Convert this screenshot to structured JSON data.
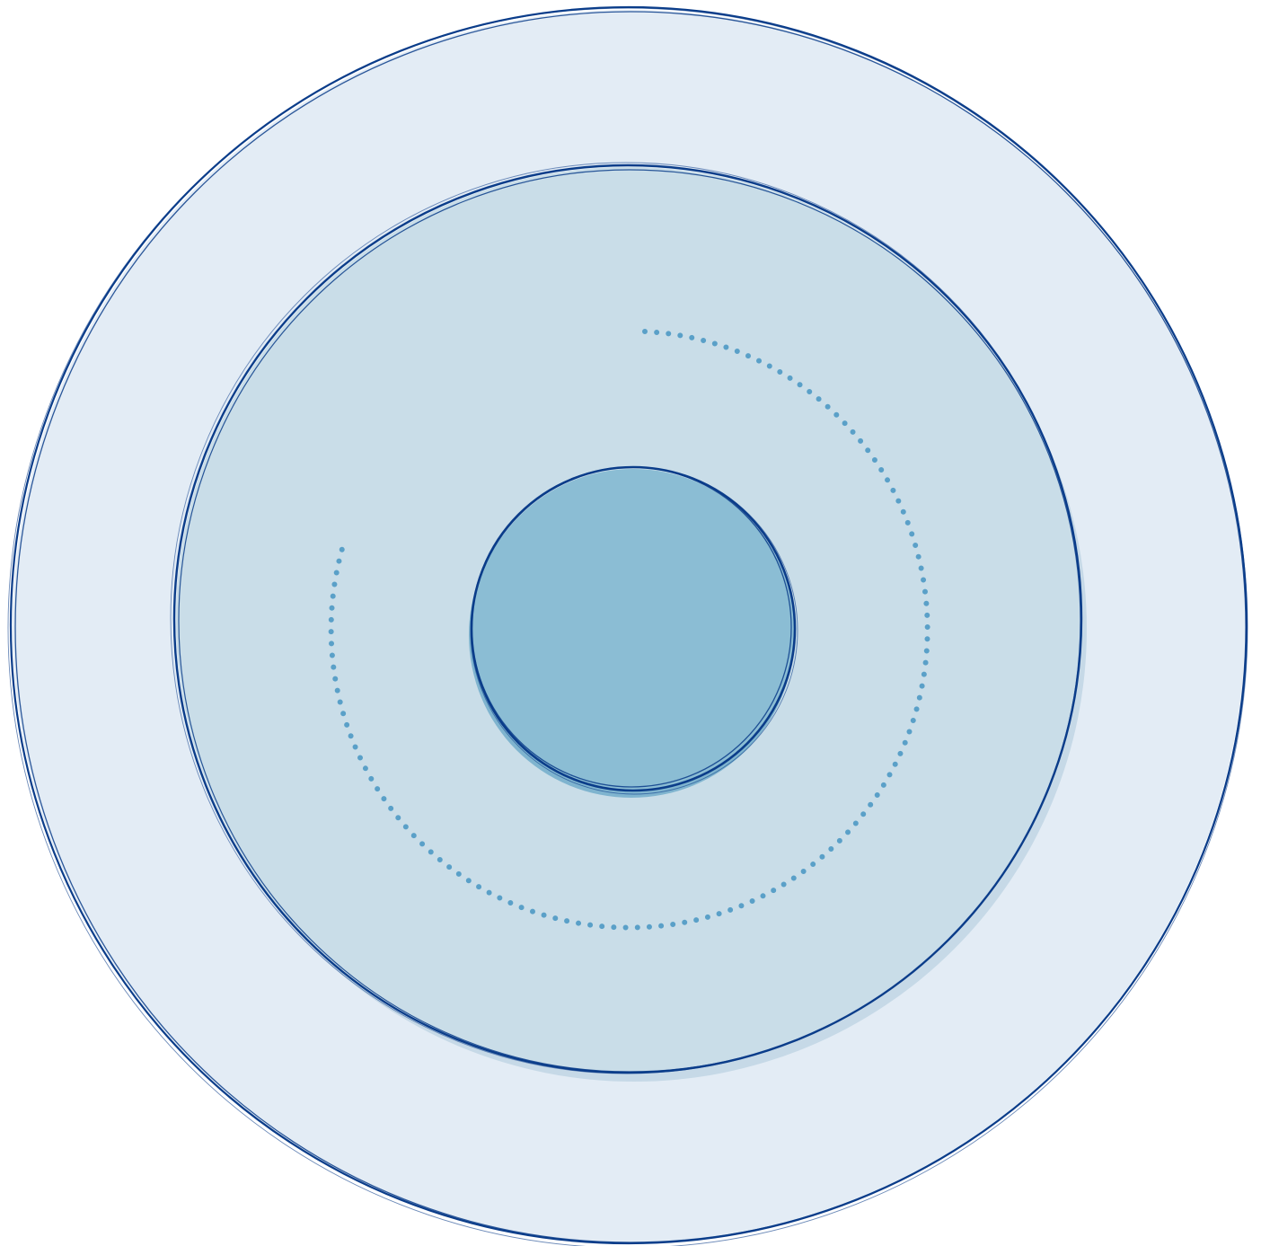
{
  "diagram": {
    "type": "concentric-circles",
    "rings": [
      {
        "id": "outer",
        "fill": "#e3ecf5",
        "stroke": "#0b3d8a"
      },
      {
        "id": "middle",
        "fill": "#c9dde8",
        "stroke": "#0b3d8a"
      },
      {
        "id": "inner",
        "fill": "#8bbdd4",
        "stroke": "#0b3d8a"
      }
    ],
    "spiral": {
      "style": "dotted",
      "color": "#5aa0c8"
    },
    "labels": []
  }
}
